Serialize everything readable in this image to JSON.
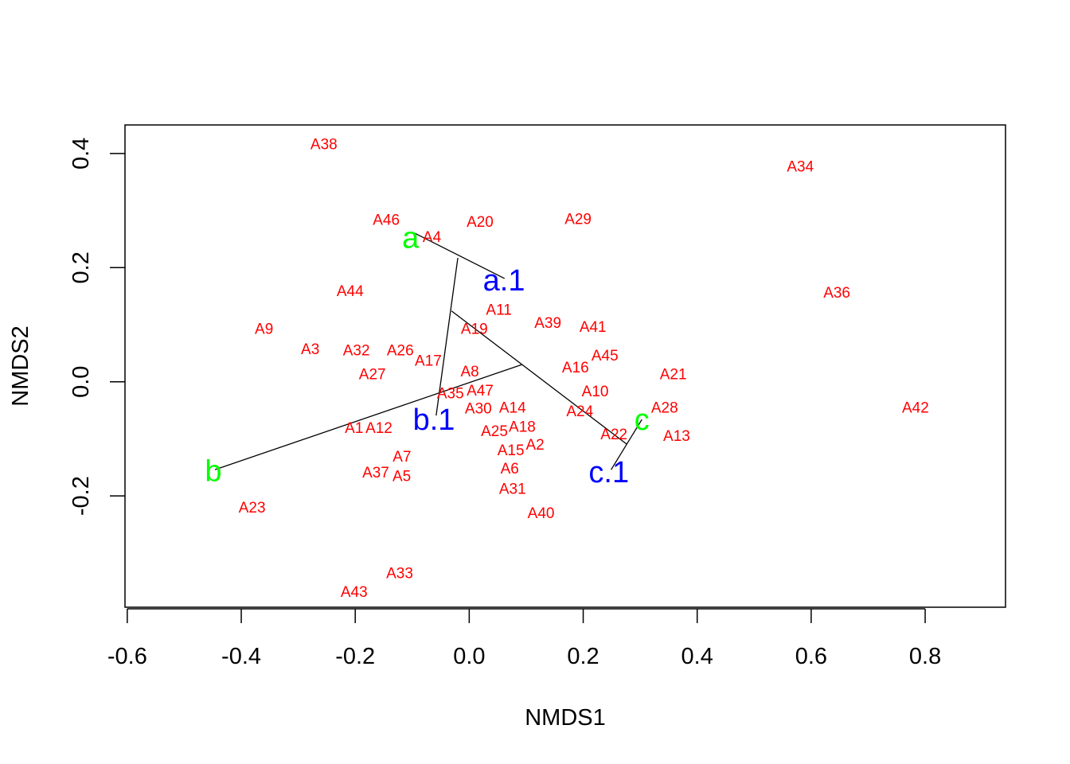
{
  "chart_data": {
    "type": "scatter",
    "title": "",
    "xlabel": "NMDS1",
    "ylabel": "NMDS2",
    "xlim": [
      -0.604,
      0.941
    ],
    "ylim": [
      -0.395,
      0.45
    ],
    "xticks": [
      -0.6,
      -0.4,
      -0.2,
      0.0,
      0.2,
      0.4,
      0.6,
      0.8
    ],
    "xtick_labels": [
      "-0.6",
      "-0.4",
      "-0.2",
      "0.0",
      "0.2",
      "0.4",
      "0.6",
      "0.8"
    ],
    "yticks": [
      -0.2,
      0.0,
      0.2,
      0.4
    ],
    "ytick_labels": [
      "-0.2",
      "0.0",
      "0.2",
      "0.4"
    ],
    "grid": false,
    "colors": {
      "sites": "#ff0000",
      "groups": "#00ff00",
      "centroids": "#0000ff",
      "lines": "#000000"
    },
    "sites": [
      {
        "label": "A38",
        "x": -0.255,
        "y": 0.417
      },
      {
        "label": "A34",
        "x": 0.581,
        "y": 0.378
      },
      {
        "label": "A46",
        "x": -0.14,
        "y": 0.285
      },
      {
        "label": "A20",
        "x": 0.019,
        "y": 0.281
      },
      {
        "label": "A29",
        "x": 0.191,
        "y": 0.286
      },
      {
        "label": "A4",
        "x": -0.071,
        "y": 0.255
      },
      {
        "label": "A44",
        "x": -0.209,
        "y": 0.16
      },
      {
        "label": "A36",
        "x": 0.645,
        "y": 0.157
      },
      {
        "label": "A11",
        "x": 0.052,
        "y": 0.127
      },
      {
        "label": "A39",
        "x": 0.138,
        "y": 0.104
      },
      {
        "label": "A41",
        "x": 0.217,
        "y": 0.097
      },
      {
        "label": "A9",
        "x": -0.36,
        "y": 0.094
      },
      {
        "label": "A19",
        "x": 0.009,
        "y": 0.099
      },
      {
        "label": "A3",
        "x": -0.279,
        "y": 0.058
      },
      {
        "label": "A32",
        "x": -0.198,
        "y": 0.056
      },
      {
        "label": "A26",
        "x": -0.121,
        "y": 0.056
      },
      {
        "label": "A45",
        "x": 0.238,
        "y": 0.047
      },
      {
        "label": "A17",
        "x": -0.083,
        "y": 0.038
      },
      {
        "label": "A16",
        "x": 0.192,
        "y": 0.026
      },
      {
        "label": "A8",
        "x": 0.001,
        "y": 0.019
      },
      {
        "label": "A21",
        "x": 0.358,
        "y": 0.014
      },
      {
        "label": "A27",
        "x": -0.17,
        "y": 0.014
      },
      {
        "label": "A47",
        "x": 0.019,
        "y": -0.009
      },
      {
        "label": "A10",
        "x": 0.221,
        "y": -0.016
      },
      {
        "label": "A35",
        "x": -0.033,
        "y": -0.025
      },
      {
        "label": "A24",
        "x": 0.194,
        "y": -0.034
      },
      {
        "label": "A28",
        "x": 0.326,
        "y": -0.044
      },
      {
        "label": "A42",
        "x": 0.783,
        "y": -0.044
      },
      {
        "label": "A30",
        "x": 0.016,
        "y": -0.046
      },
      {
        "label": "A14",
        "x": 0.076,
        "y": -0.044
      },
      {
        "label": "A18",
        "x": 0.093,
        "y": -0.044
      },
      {
        "label": "A25",
        "x": 0.061,
        "y": -0.069
      },
      {
        "label": "A2",
        "x": 0.082,
        "y": -0.076
      },
      {
        "label": "A1",
        "x": -0.202,
        "y": -0.08
      },
      {
        "label": "A12",
        "x": -0.164,
        "y": -0.08
      },
      {
        "label": "A22",
        "x": 0.254,
        "y": -0.091
      },
      {
        "label": "A13",
        "x": 0.364,
        "y": -0.094
      },
      {
        "label": "A15",
        "x": 0.073,
        "y": -0.102
      },
      {
        "label": "A7",
        "x": -0.118,
        "y": -0.13
      },
      {
        "label": "A6",
        "x": 0.071,
        "y": -0.134
      },
      {
        "label": "A37",
        "x": -0.164,
        "y": -0.158
      },
      {
        "label": "A5",
        "x": -0.124,
        "y": -0.164
      },
      {
        "label": "A31",
        "x": 0.076,
        "y": -0.181
      },
      {
        "label": "A23",
        "x": -0.381,
        "y": -0.219
      },
      {
        "label": "A40",
        "x": 0.126,
        "y": -0.229
      },
      {
        "label": "A33",
        "x": -0.122,
        "y": -0.334
      },
      {
        "label": "A43",
        "x": -0.202,
        "y": -0.367
      }
    ],
    "groups": [
      {
        "label": "a",
        "x": -0.103,
        "y": 0.253
      },
      {
        "label": "b",
        "x": -0.449,
        "y": -0.156
      },
      {
        "label": "c",
        "x": 0.303,
        "y": -0.066
      }
    ],
    "centroids": [
      {
        "label": "a.1",
        "x": 0.061,
        "y": 0.178
      },
      {
        "label": "b.1",
        "x": -0.062,
        "y": -0.066
      },
      {
        "label": "c.1",
        "x": 0.245,
        "y": -0.158
      }
    ],
    "segments": [
      {
        "x1": -0.099,
        "y1": 0.262,
        "x2": 0.062,
        "y2": 0.181
      },
      {
        "x1": -0.02,
        "y1": 0.217,
        "x2": -0.058,
        "y2": -0.059
      },
      {
        "x1": -0.031,
        "y1": 0.124,
        "x2": 0.276,
        "y2": -0.109
      },
      {
        "x1": -0.446,
        "y1": -0.154,
        "x2": 0.092,
        "y2": 0.03
      },
      {
        "x1": 0.303,
        "y1": -0.066,
        "x2": 0.249,
        "y2": -0.154
      }
    ]
  }
}
